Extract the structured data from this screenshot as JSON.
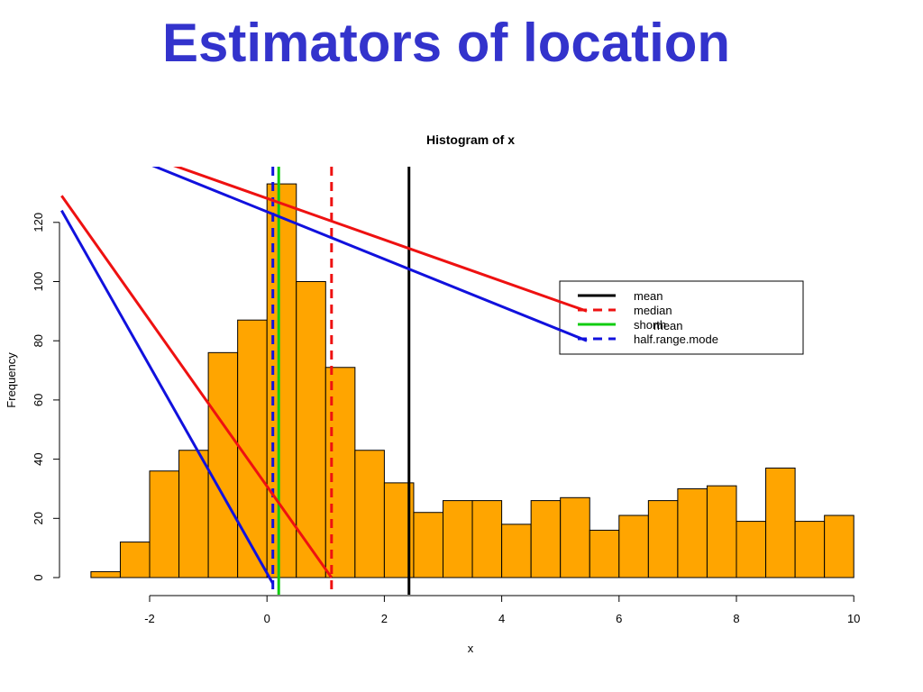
{
  "slide": {
    "title": "Estimators of location",
    "title_color": "#3333cc"
  },
  "chart_data": {
    "type": "bar",
    "title": "Histogram of x",
    "xlabel": "x",
    "ylabel": "Frequency",
    "xlim": [
      -3.5,
      10
    ],
    "ylim": [
      0,
      135
    ],
    "xticks": [
      -2,
      0,
      2,
      4,
      6,
      8,
      10
    ],
    "yticks": [
      0,
      20,
      40,
      60,
      80,
      100,
      120
    ],
    "bin_width": 0.5,
    "bins": [
      {
        "start": -3.0,
        "count": 2
      },
      {
        "start": -2.5,
        "count": 12
      },
      {
        "start": -2.0,
        "count": 36
      },
      {
        "start": -1.5,
        "count": 43
      },
      {
        "start": -1.0,
        "count": 76
      },
      {
        "start": -0.5,
        "count": 87
      },
      {
        "start": 0.0,
        "count": 133
      },
      {
        "start": 0.5,
        "count": 100
      },
      {
        "start": 1.0,
        "count": 71
      },
      {
        "start": 1.5,
        "count": 43
      },
      {
        "start": 2.0,
        "count": 32
      },
      {
        "start": 2.5,
        "count": 22
      },
      {
        "start": 3.0,
        "count": 26
      },
      {
        "start": 3.5,
        "count": 26
      },
      {
        "start": 4.0,
        "count": 18
      },
      {
        "start": 4.5,
        "count": 26
      },
      {
        "start": 5.0,
        "count": 27
      },
      {
        "start": 5.5,
        "count": 16
      },
      {
        "start": 6.0,
        "count": 21
      },
      {
        "start": 6.5,
        "count": 26
      },
      {
        "start": 7.0,
        "count": 30
      },
      {
        "start": 7.5,
        "count": 31
      },
      {
        "start": 8.0,
        "count": 19
      },
      {
        "start": 8.5,
        "count": 37
      },
      {
        "start": 9.0,
        "count": 19
      },
      {
        "start": 9.5,
        "count": 21
      }
    ],
    "bar_color": "#ffa500",
    "estimators": [
      {
        "name": "mean",
        "x": 2.42,
        "color": "#000000",
        "dashed": false
      },
      {
        "name": "median",
        "x": 1.1,
        "color": "#ee1111",
        "dashed": true
      },
      {
        "name": "shorth",
        "x": 0.2,
        "color": "#11cc11",
        "dashed": false
      },
      {
        "name": "half.range.mode",
        "x": 0.1,
        "color": "#1111dd",
        "dashed": true
      }
    ],
    "legend": {
      "position": "top-right",
      "entries": [
        "mean",
        "median",
        "shorth",
        "half.range.mode"
      ],
      "overprint": "mean"
    },
    "pointer_lines": [
      {
        "color": "#ee1111",
        "from": [
          -3.5,
          129
        ],
        "to": [
          1.1,
          0
        ]
      },
      {
        "color": "#1111dd",
        "from": [
          -3.5,
          124
        ],
        "to": [
          0.1,
          -2
        ]
      },
      {
        "color": "#ee1111",
        "from": [
          -1.7,
          140
        ],
        "to": [
          5.45,
          90
        ]
      },
      {
        "color": "#1111dd",
        "from": [
          -2.05,
          140
        ],
        "to": [
          5.45,
          80
        ]
      }
    ]
  }
}
